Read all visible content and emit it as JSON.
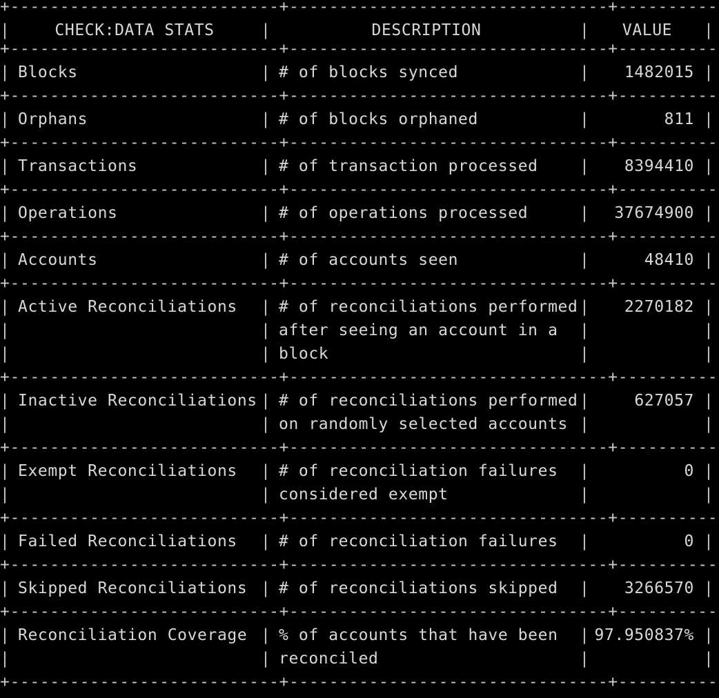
{
  "table": {
    "border": "+---------------------------+--------------------------------+------------+",
    "pipe": "|",
    "headers": {
      "name": "CHECK:DATA STATS",
      "description": "DESCRIPTION",
      "value": "VALUE"
    },
    "rows": [
      {
        "name": "Blocks",
        "lines": [
          "# of blocks synced"
        ],
        "value": "1482015"
      },
      {
        "name": "Orphans",
        "lines": [
          "# of blocks orphaned"
        ],
        "value": "811"
      },
      {
        "name": "Transactions",
        "lines": [
          "# of transaction processed"
        ],
        "value": "8394410"
      },
      {
        "name": "Operations",
        "lines": [
          "# of operations processed"
        ],
        "value": "37674900"
      },
      {
        "name": "Accounts",
        "lines": [
          "# of accounts seen"
        ],
        "value": "48410"
      },
      {
        "name": "Active Reconciliations",
        "lines": [
          "# of reconciliations performed",
          "after seeing an account in a",
          "block"
        ],
        "value": "2270182"
      },
      {
        "name": "Inactive Reconciliations",
        "lines": [
          "# of reconciliations performed",
          "on randomly selected accounts"
        ],
        "value": "627057"
      },
      {
        "name": "Exempt Reconciliations",
        "lines": [
          "# of reconciliation failures",
          "considered exempt"
        ],
        "value": "0"
      },
      {
        "name": "Failed Reconciliations",
        "lines": [
          "# of reconciliation failures"
        ],
        "value": "0"
      },
      {
        "name": "Skipped Reconciliations",
        "lines": [
          "# of reconciliations skipped"
        ],
        "value": "3266570"
      },
      {
        "name": "Reconciliation Coverage",
        "lines": [
          "% of accounts that have been",
          "reconciled"
        ],
        "value": "97.950837%"
      }
    ]
  }
}
